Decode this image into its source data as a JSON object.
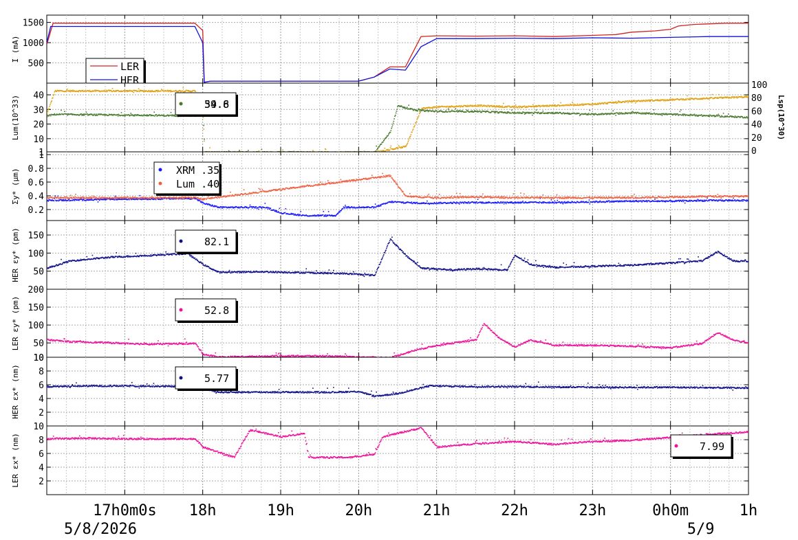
{
  "chart_data": [
    {
      "type": "line",
      "panel": "beam-current",
      "ylabel": "I (mA)",
      "yticks": [
        500,
        1000,
        1500
      ],
      "ylim": [
        0,
        1680
      ],
      "legend": {
        "placement": "top-left",
        "entries": [
          "LER",
          "HER"
        ]
      },
      "series": [
        {
          "name": "LER",
          "color": "#d42020",
          "points": [
            [
              16.0,
              950
            ],
            [
              16.08,
              1480
            ],
            [
              17.9,
              1480
            ],
            [
              18.0,
              1300
            ],
            [
              18.02,
              20
            ],
            [
              18.1,
              50
            ],
            [
              20.0,
              50
            ],
            [
              20.2,
              150
            ],
            [
              20.4,
              400
            ],
            [
              20.6,
              400
            ],
            [
              20.8,
              1150
            ],
            [
              21.0,
              1170
            ],
            [
              21.5,
              1160
            ],
            [
              22.0,
              1170
            ],
            [
              22.5,
              1150
            ],
            [
              23.0,
              1180
            ],
            [
              23.3,
              1200
            ],
            [
              23.5,
              1260
            ],
            [
              23.8,
              1290
            ],
            [
              24.0,
              1330
            ],
            [
              24.1,
              1410
            ],
            [
              24.3,
              1450
            ],
            [
              24.7,
              1480
            ],
            [
              25.0,
              1480
            ]
          ]
        },
        {
          "name": "HER",
          "color": "#1010e0",
          "points": [
            [
              16.0,
              1000
            ],
            [
              16.05,
              1400
            ],
            [
              17.9,
              1400
            ],
            [
              18.0,
              1000
            ],
            [
              18.02,
              20
            ],
            [
              18.1,
              50
            ],
            [
              20.0,
              50
            ],
            [
              20.2,
              150
            ],
            [
              20.4,
              350
            ],
            [
              20.6,
              320
            ],
            [
              20.8,
              900
            ],
            [
              21.0,
              1100
            ],
            [
              21.5,
              1100
            ],
            [
              22.0,
              1110
            ],
            [
              22.5,
              1100
            ],
            [
              23.0,
              1120
            ],
            [
              23.5,
              1110
            ],
            [
              24.0,
              1130
            ],
            [
              24.5,
              1150
            ],
            [
              25.0,
              1150
            ]
          ]
        }
      ]
    },
    {
      "type": "scatter",
      "panel": "luminosity",
      "ylabel": "Lum(10^33)",
      "ylabel_right": "Lsp(10^30)",
      "yticks": [
        1,
        10,
        20,
        30,
        40
      ],
      "ylim": [
        1,
        48
      ],
      "yticks_right": [
        0,
        20,
        40,
        60,
        80,
        100
      ],
      "legend": {
        "placement": "top-center",
        "values": [
          "39.8",
          "54.6"
        ]
      },
      "series": [
        {
          "name": "",
          "color": "#e0a010",
          "points": [
            [
              16.0,
              28
            ],
            [
              16.1,
              43
            ],
            [
              17.9,
              43
            ],
            [
              18.0,
              25
            ],
            [
              18.02,
              1
            ],
            [
              20.2,
              1
            ],
            [
              20.6,
              5
            ],
            [
              20.8,
              31
            ],
            [
              21.0,
              32
            ],
            [
              21.5,
              33
            ],
            [
              22.0,
              32
            ],
            [
              22.5,
              33
            ],
            [
              23.0,
              34
            ],
            [
              23.5,
              36
            ],
            [
              24.0,
              37
            ],
            [
              24.5,
              38
            ],
            [
              25.0,
              39
            ]
          ]
        },
        {
          "name": "",
          "color": "#4a7a30",
          "points": [
            [
              16.0,
              26
            ],
            [
              16.1,
              27
            ],
            [
              17.9,
              26
            ],
            [
              18.0,
              28
            ],
            [
              18.02,
              1
            ],
            [
              20.2,
              1
            ],
            [
              20.4,
              15
            ],
            [
              20.5,
              33
            ],
            [
              20.7,
              30
            ],
            [
              21.0,
              29
            ],
            [
              21.5,
              29
            ],
            [
              22.0,
              28
            ],
            [
              22.5,
              28
            ],
            [
              23.0,
              27
            ],
            [
              23.5,
              28
            ],
            [
              24.0,
              27
            ],
            [
              24.5,
              26
            ],
            [
              25.0,
              25
            ]
          ]
        }
      ]
    },
    {
      "type": "scatter",
      "panel": "sigma-y",
      "ylabel": "Σy* (μm)",
      "yticks": [
        0.2,
        0.4,
        0.6,
        0.8,
        1
      ],
      "ylim": [
        0.04,
        1.04
      ],
      "legend": {
        "placement": "top-center",
        "entries": [
          "XRM",
          "Lum"
        ],
        "values": [
          ".35",
          ".40"
        ]
      },
      "series": [
        {
          "name": "XRM",
          "color": "#1a1aff",
          "points": [
            [
              16.0,
              0.34
            ],
            [
              16.5,
              0.35
            ],
            [
              17.0,
              0.36
            ],
            [
              17.9,
              0.37
            ],
            [
              18.0,
              0.3
            ],
            [
              18.2,
              0.24
            ],
            [
              18.8,
              0.24
            ],
            [
              19.0,
              0.16
            ],
            [
              19.3,
              0.12
            ],
            [
              19.7,
              0.12
            ],
            [
              19.8,
              0.24
            ],
            [
              20.2,
              0.24
            ],
            [
              20.4,
              0.32
            ],
            [
              20.8,
              0.3
            ],
            [
              21.5,
              0.31
            ],
            [
              22.0,
              0.31
            ],
            [
              22.5,
              0.31
            ],
            [
              23.0,
              0.32
            ],
            [
              23.5,
              0.33
            ],
            [
              24.0,
              0.33
            ],
            [
              24.5,
              0.34
            ],
            [
              25.0,
              0.34
            ]
          ]
        },
        {
          "name": "Lum",
          "color": "#f06040",
          "points": [
            [
              16.0,
              0.38
            ],
            [
              16.5,
              0.38
            ],
            [
              17.0,
              0.38
            ],
            [
              17.9,
              0.38
            ],
            [
              18.0,
              0.36
            ],
            [
              20.4,
              0.7
            ],
            [
              20.6,
              0.4
            ],
            [
              21.0,
              0.38
            ],
            [
              21.5,
              0.39
            ],
            [
              22.0,
              0.38
            ],
            [
              22.5,
              0.38
            ],
            [
              23.0,
              0.38
            ],
            [
              23.5,
              0.38
            ],
            [
              24.0,
              0.39
            ],
            [
              24.5,
              0.4
            ],
            [
              25.0,
              0.4
            ]
          ]
        }
      ]
    },
    {
      "type": "scatter",
      "panel": "her-emittance-y",
      "ylabel": "HER εy* (pm)",
      "yticks": [
        50,
        100,
        150
      ],
      "ylim": [
        0,
        190
      ],
      "legend": {
        "placement": "top-center",
        "values": [
          "82.1"
        ]
      },
      "series": [
        {
          "name": "",
          "color": "#10108a",
          "points": [
            [
              16.0,
              60
            ],
            [
              16.3,
              80
            ],
            [
              16.8,
              90
            ],
            [
              17.3,
              95
            ],
            [
              17.8,
              100
            ],
            [
              18.0,
              70
            ],
            [
              18.2,
              48
            ],
            [
              18.7,
              50
            ],
            [
              19.8,
              45
            ],
            [
              20.2,
              40
            ],
            [
              20.4,
              140
            ],
            [
              20.6,
              95
            ],
            [
              20.8,
              60
            ],
            [
              21.2,
              55
            ],
            [
              21.5,
              58
            ],
            [
              21.9,
              55
            ],
            [
              22.0,
              95
            ],
            [
              22.2,
              70
            ],
            [
              22.5,
              62
            ],
            [
              23.0,
              65
            ],
            [
              23.5,
              68
            ],
            [
              24.0,
              74
            ],
            [
              24.4,
              80
            ],
            [
              24.6,
              105
            ],
            [
              24.8,
              80
            ],
            [
              25.0,
              78
            ]
          ]
        }
      ]
    },
    {
      "type": "scatter",
      "panel": "ler-emittance-y",
      "ylabel": "LER εy* (pm)",
      "yticks": [
        10,
        50,
        100,
        150,
        200
      ],
      "ylim": [
        10,
        200
      ],
      "legend": {
        "placement": "top-center",
        "values": [
          "52.8"
        ]
      },
      "series": [
        {
          "name": "",
          "color": "#f0109a",
          "points": [
            [
              16.0,
              60
            ],
            [
              16.3,
              55
            ],
            [
              16.8,
              52
            ],
            [
              17.3,
              48
            ],
            [
              17.9,
              50
            ],
            [
              18.0,
              20
            ],
            [
              18.2,
              12
            ],
            [
              19.0,
              15
            ],
            [
              19.5,
              15
            ],
            [
              20.0,
              12
            ],
            [
              20.4,
              10
            ],
            [
              20.7,
              30
            ],
            [
              21.0,
              45
            ],
            [
              21.5,
              60
            ],
            [
              21.6,
              105
            ],
            [
              21.8,
              65
            ],
            [
              22.0,
              40
            ],
            [
              22.2,
              60
            ],
            [
              22.5,
              45
            ],
            [
              23.0,
              45
            ],
            [
              23.5,
              42
            ],
            [
              24.0,
              38
            ],
            [
              24.4,
              50
            ],
            [
              24.6,
              80
            ],
            [
              24.8,
              60
            ],
            [
              25.0,
              50
            ]
          ]
        }
      ]
    },
    {
      "type": "scatter",
      "panel": "her-emittance-x",
      "ylabel": "HER εx* (nm)",
      "yticks": [
        2,
        4,
        6,
        8,
        10
      ],
      "ylim": [
        0,
        10
      ],
      "legend": {
        "placement": "top-center",
        "values": [
          "5.77"
        ]
      },
      "series": [
        {
          "name": "",
          "color": "#10108a",
          "points": [
            [
              16.0,
              5.8
            ],
            [
              16.5,
              5.9
            ],
            [
              17.0,
              5.9
            ],
            [
              17.9,
              5.8
            ],
            [
              18.0,
              5.5
            ],
            [
              18.2,
              5.0
            ],
            [
              18.75,
              5.0
            ],
            [
              19.7,
              5.0
            ],
            [
              20.0,
              5.1
            ],
            [
              20.2,
              4.4
            ],
            [
              20.5,
              4.8
            ],
            [
              20.9,
              5.9
            ],
            [
              21.5,
              5.8
            ],
            [
              22.0,
              5.8
            ],
            [
              23.0,
              5.7
            ],
            [
              24.0,
              5.7
            ],
            [
              25.0,
              5.6
            ]
          ]
        }
      ]
    },
    {
      "type": "scatter",
      "panel": "ler-emittance-x",
      "ylabel": "LER εx* (nm)",
      "yticks": [
        2,
        4,
        6,
        8,
        10
      ],
      "ylim": [
        0,
        10
      ],
      "legend": {
        "placement": "bottom-right",
        "values": [
          "7.99"
        ]
      },
      "series": [
        {
          "name": "",
          "color": "#f0109a",
          "points": [
            [
              16.0,
              8.2
            ],
            [
              16.5,
              8.3
            ],
            [
              17.0,
              8.2
            ],
            [
              17.9,
              8.2
            ],
            [
              18.0,
              7.0
            ],
            [
              18.4,
              5.5
            ],
            [
              18.6,
              9.5
            ],
            [
              19.0,
              8.5
            ],
            [
              19.3,
              9.0
            ],
            [
              19.35,
              5.5
            ],
            [
              19.9,
              5.5
            ],
            [
              20.2,
              6.0
            ],
            [
              20.3,
              8.5
            ],
            [
              20.8,
              9.8
            ],
            [
              21.0,
              7.0
            ],
            [
              21.5,
              7.5
            ],
            [
              22.0,
              7.8
            ],
            [
              22.5,
              7.4
            ],
            [
              23.0,
              7.8
            ],
            [
              23.5,
              8.0
            ],
            [
              24.0,
              8.4
            ],
            [
              24.5,
              8.9
            ],
            [
              25.0,
              9.2
            ]
          ]
        }
      ]
    }
  ],
  "x_axis": {
    "ticks": [
      {
        "t": 17.0,
        "label": "17h0m0s"
      },
      {
        "t": 18.0,
        "label": "18h"
      },
      {
        "t": 19.0,
        "label": "19h"
      },
      {
        "t": 20.0,
        "label": "20h"
      },
      {
        "t": 21.0,
        "label": "21h"
      },
      {
        "t": 22.0,
        "label": "22h"
      },
      {
        "t": 23.0,
        "label": "23h"
      },
      {
        "t": 24.0,
        "label": "0h0m"
      },
      {
        "t": 25.0,
        "label": "1h"
      }
    ],
    "dates": [
      {
        "t": 16.3,
        "label": "5/8/2026"
      },
      {
        "t": 24.0,
        "label": "5/9"
      }
    ],
    "xlim": [
      16.0,
      25.0
    ]
  }
}
